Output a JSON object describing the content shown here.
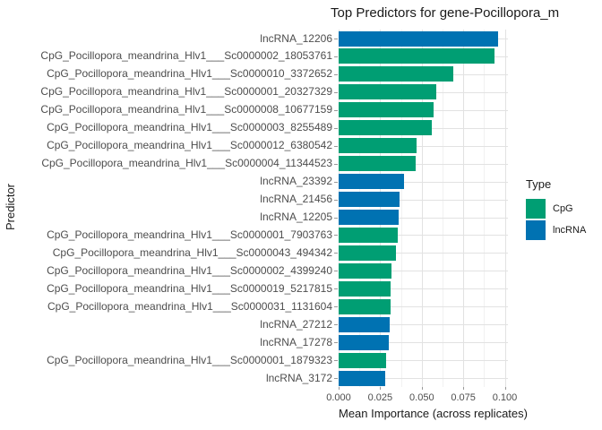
{
  "chart_data": {
    "type": "bar",
    "orientation": "horizontal",
    "title": "Top Predictors for gene-Pocillopora_m",
    "xlabel": "Mean Importance (across replicates)",
    "ylabel": "Predictor",
    "xlim": [
      0,
      0.102
    ],
    "grid": true,
    "legend_position": "right",
    "x_ticks": [
      {
        "value": 0.0,
        "label": "0.000"
      },
      {
        "value": 0.025,
        "label": "0.025"
      },
      {
        "value": 0.05,
        "label": "0.050"
      },
      {
        "value": 0.075,
        "label": "0.075"
      },
      {
        "value": 0.1,
        "label": "0.100"
      }
    ],
    "x_minor_ticks": [
      0.0125,
      0.0375,
      0.0625,
      0.0875
    ],
    "bars": [
      {
        "label": "lncRNA_12206",
        "type": "lncRNA",
        "value": 0.096
      },
      {
        "label": "CpG_Pocillopora_meandrina_Hlv1___Sc0000002_18053761",
        "type": "CpG",
        "value": 0.094
      },
      {
        "label": "CpG_Pocillopora_meandrina_Hlv1___Sc0000010_3372652",
        "type": "CpG",
        "value": 0.069
      },
      {
        "label": "CpG_Pocillopora_meandrina_Hlv1___Sc0000001_20327329",
        "type": "CpG",
        "value": 0.059
      },
      {
        "label": "CpG_Pocillopora_meandrina_Hlv1___Sc0000008_10677159",
        "type": "CpG",
        "value": 0.057
      },
      {
        "label": "CpG_Pocillopora_meandrina_Hlv1___Sc0000003_8255489",
        "type": "CpG",
        "value": 0.056
      },
      {
        "label": "CpG_Pocillopora_meandrina_Hlv1___Sc0000012_6380542",
        "type": "CpG",
        "value": 0.047
      },
      {
        "label": "CpG_Pocillopora_meandrina_Hlv1___Sc0000004_11344523",
        "type": "CpG",
        "value": 0.0465
      },
      {
        "label": "lncRNA_23392",
        "type": "lncRNA",
        "value": 0.0395
      },
      {
        "label": "lncRNA_21456",
        "type": "lncRNA",
        "value": 0.0365
      },
      {
        "label": "lncRNA_12205",
        "type": "lncRNA",
        "value": 0.036
      },
      {
        "label": "CpG_Pocillopora_meandrina_Hlv1___Sc0000001_7903763",
        "type": "CpG",
        "value": 0.0355
      },
      {
        "label": "CpG_Pocillopora_meandrina_Hlv1___Sc0000043_494342",
        "type": "CpG",
        "value": 0.0345
      },
      {
        "label": "CpG_Pocillopora_meandrina_Hlv1___Sc0000002_4399240",
        "type": "CpG",
        "value": 0.032
      },
      {
        "label": "CpG_Pocillopora_meandrina_Hlv1___Sc0000019_5217815",
        "type": "CpG",
        "value": 0.0315
      },
      {
        "label": "CpG_Pocillopora_meandrina_Hlv1___Sc0000031_1131604",
        "type": "CpG",
        "value": 0.031
      },
      {
        "label": "lncRNA_27212",
        "type": "lncRNA",
        "value": 0.0305
      },
      {
        "label": "lncRNA_17278",
        "type": "lncRNA",
        "value": 0.03
      },
      {
        "label": "CpG_Pocillopora_meandrina_Hlv1___Sc0000001_1879323",
        "type": "CpG",
        "value": 0.0285
      },
      {
        "label": "lncRNA_3172",
        "type": "lncRNA",
        "value": 0.028
      }
    ]
  },
  "legend": {
    "title": "Type",
    "items": [
      {
        "label": "CpG",
        "color": "#009E73"
      },
      {
        "label": "lncRNA",
        "color": "#0072B2"
      }
    ]
  },
  "colors": {
    "CpG": "#009E73",
    "lncRNA": "#0072B2",
    "grid_major": "#e2e2e2",
    "grid_minor": "#f1f1f1",
    "axis_text": "#4d4d4d",
    "title_text": "#1a1a1a",
    "tick": "#999999",
    "background": "#ffffff"
  }
}
